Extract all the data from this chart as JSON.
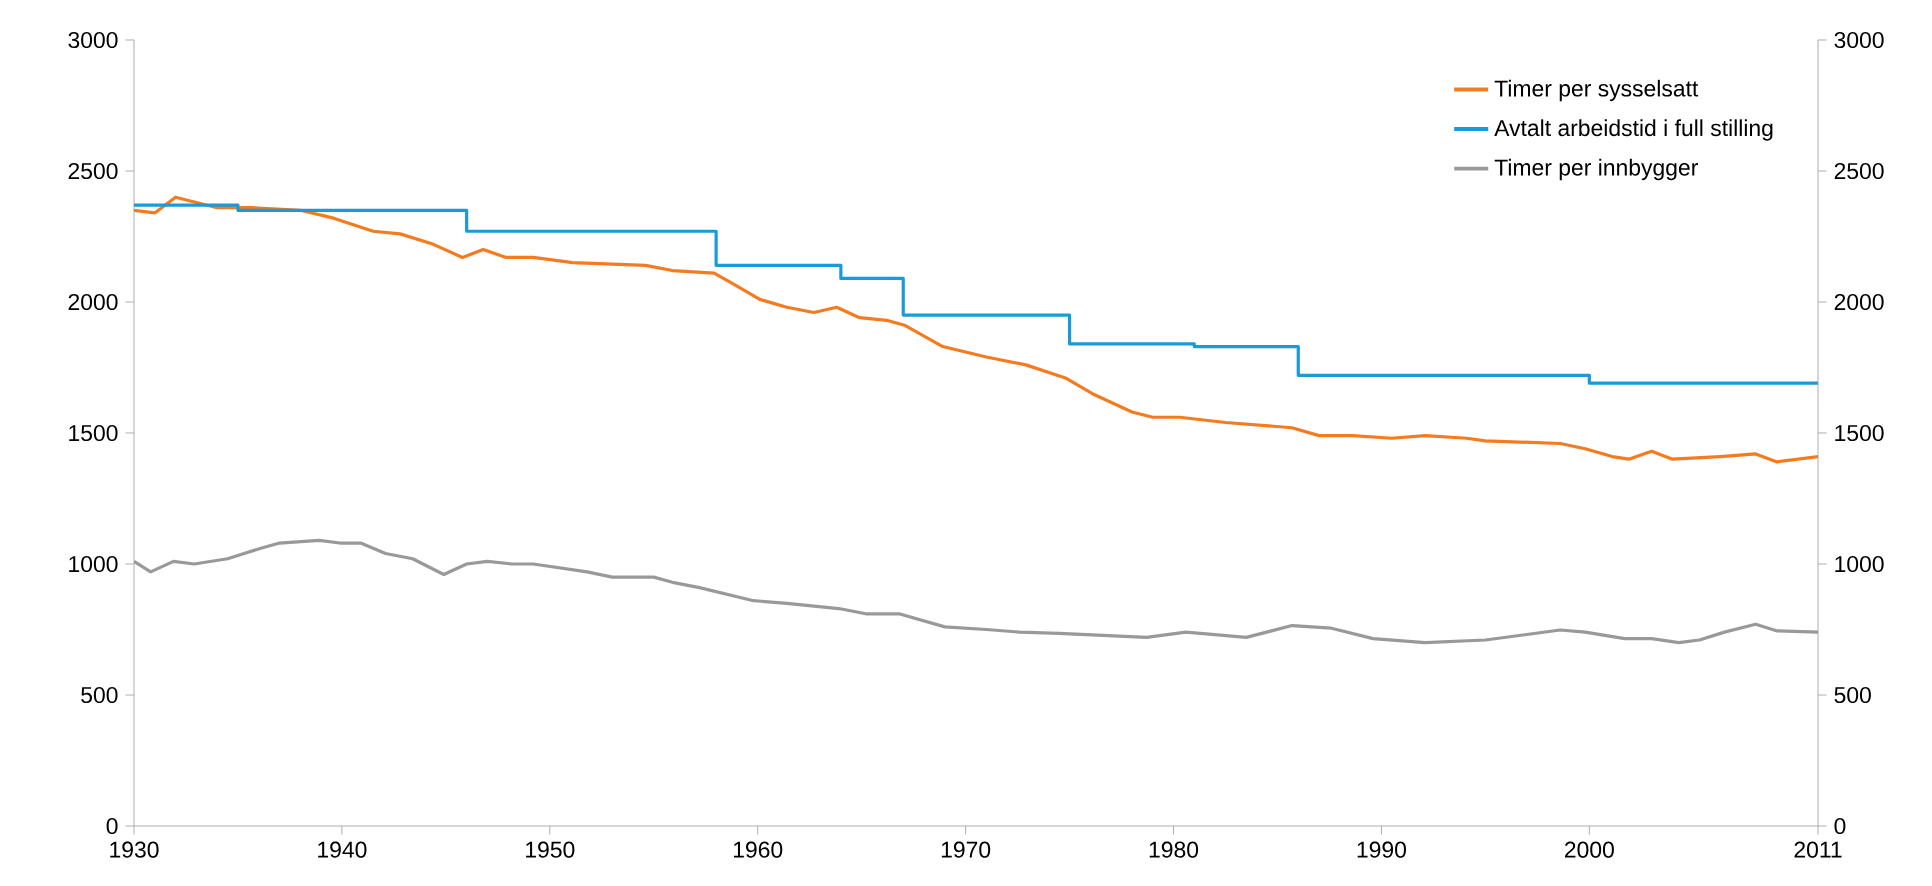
{
  "chart_data": {
    "type": "line",
    "xlim": [
      1930,
      2011
    ],
    "xticks": [
      1930,
      1940,
      1950,
      1960,
      1970,
      1980,
      1990,
      2000,
      2011
    ],
    "ylim": [
      0,
      3000
    ],
    "yticks": [
      0,
      500,
      1000,
      1500,
      2000,
      2500,
      3000
    ],
    "y2lim": [
      0,
      3000
    ],
    "y2ticks": [
      0,
      500,
      1000,
      1500,
      2000,
      2500,
      3000
    ],
    "grid": false,
    "legend": "top right",
    "marker": "none",
    "line_style": "solid",
    "series": [
      {
        "name": "Timer per sysselsatt",
        "color": "#f47b20",
        "x": [
          1930,
          1931,
          1932,
          1933,
          1934,
          1935.7,
          1938,
          1939.6,
          1941.5,
          1942.8,
          1944.4,
          1945.8,
          1946.8,
          1947.9,
          1949.2,
          1951.1,
          1954.6,
          1955.9,
          1957.9,
          1958.8,
          1960.1,
          1961.4,
          1962.7,
          1963.8,
          1964.9,
          1966.2,
          1967.1,
          1968.9,
          1971,
          1972.9,
          1974.8,
          1976.1,
          1978,
          1979,
          1980.3,
          1982.5,
          1985.7,
          1987,
          1988.6,
          1990.5,
          1992.1,
          1994.1,
          1995,
          1998.6,
          1999.8,
          2001.1,
          2001.9,
          2003,
          2004,
          2006.3,
          2008,
          2009,
          2011
        ],
        "values": [
          2350,
          2340,
          2400,
          2380,
          2360,
          2360,
          2350,
          2320,
          2270,
          2260,
          2220,
          2170,
          2200,
          2170,
          2170,
          2150,
          2140,
          2120,
          2110,
          2070,
          2010,
          1980,
          1960,
          1980,
          1940,
          1930,
          1910,
          1830,
          1790,
          1760,
          1710,
          1650,
          1580,
          1560,
          1560,
          1540,
          1520,
          1490,
          1490,
          1480,
          1490,
          1480,
          1470,
          1460,
          1440,
          1410,
          1400,
          1430,
          1400,
          1410,
          1420,
          1390,
          1410
        ]
      },
      {
        "name": "Avtalt arbeidstid i full stilling",
        "color": "#1a9ad6",
        "type": "step",
        "x": [
          1930,
          1935,
          1946,
          1958,
          1964,
          1967,
          1975,
          1981,
          1986,
          2000,
          2011
        ],
        "values": [
          2370,
          2350,
          2270,
          2140,
          2090,
          1950,
          1840,
          1830,
          1720,
          1690,
          1690
        ]
      },
      {
        "name": "Timer per innbygger",
        "color": "#999999",
        "x": [
          1930,
          1930.8,
          1931.9,
          1932.9,
          1934.5,
          1936.1,
          1937,
          1938.9,
          1939.9,
          1940.9,
          1942.1,
          1943.4,
          1944.9,
          1946,
          1947,
          1948.2,
          1949.2,
          1951.8,
          1953,
          1955,
          1955.9,
          1957.2,
          1959.8,
          1961.4,
          1963.9,
          1965.2,
          1966.8,
          1969,
          1971,
          1972.6,
          1974.5,
          1978.7,
          1980.6,
          1983.5,
          1985.7,
          1987.6,
          1989.6,
          1992.1,
          1995,
          1996.9,
          1998.6,
          1999.8,
          2001.7,
          2003,
          2004.3,
          2005.3,
          2006.5,
          2008,
          2009,
          2011
        ],
        "values": [
          1010,
          970,
          1010,
          1000,
          1020,
          1060,
          1080,
          1090,
          1080,
          1080,
          1040,
          1020,
          960,
          1000,
          1010,
          1000,
          1000,
          970,
          950,
          950,
          930,
          910,
          860,
          850,
          830,
          810,
          810,
          760,
          750,
          740,
          735,
          720,
          740,
          720,
          765,
          755,
          715,
          700,
          710,
          730,
          748,
          740,
          715,
          715,
          700,
          710,
          740,
          770,
          745,
          740
        ]
      }
    ]
  }
}
